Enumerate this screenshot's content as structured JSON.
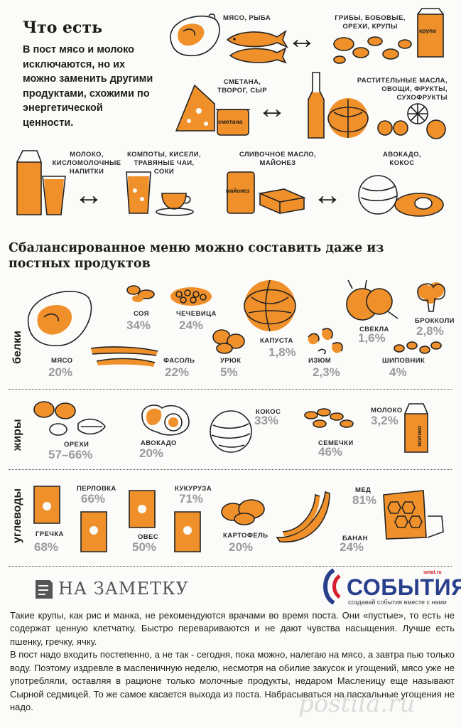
{
  "header": {
    "title": "Что есть",
    "intro": "В пост мясо и молоко исключаются, но их можно заменить другими продуктами, схожими по энергетической ценности."
  },
  "substitutions": {
    "meat_fish": "мясо, рыба",
    "mushrooms": "грибы, бобовые, орехи, крупы",
    "dairy_soft": "сметана, творог, сыр",
    "veg_oils": "растительные масла, овощи, фрукты, сухофрукты",
    "milk": "молоко, кисломолочные напитки",
    "compotes": "компоты, кисели, травяные чаи, соки",
    "butter": "сливочное масло, майонез",
    "avocado": "авокадо, кокос",
    "arrow": "↔",
    "pack_krupa": "крупа",
    "jar_smetana": "сметана",
    "jar_mayo": "майонез"
  },
  "balanced": {
    "title": "Сбалансированное меню можно составить даже из постных продуктов"
  },
  "sections": {
    "proteins": {
      "label": "белки",
      "items": [
        {
          "name": "мясо",
          "pct": "20%"
        },
        {
          "name": "соя",
          "pct": "34%"
        },
        {
          "name": "чечевица",
          "pct": "24%"
        },
        {
          "name": "фасоль",
          "pct": "22%"
        },
        {
          "name": "урюк",
          "pct": "5%"
        },
        {
          "name": "капуста",
          "pct": "1,8%"
        },
        {
          "name": "изюм",
          "pct": "2,3%"
        },
        {
          "name": "свекла",
          "pct": "1,6%"
        },
        {
          "name": "брокколи",
          "pct": "2,8%"
        },
        {
          "name": "шиповник",
          "pct": "4%"
        }
      ]
    },
    "fats": {
      "label": "жиры",
      "items": [
        {
          "name": "орехи",
          "pct": "57–66%"
        },
        {
          "name": "авокадо",
          "pct": "20%"
        },
        {
          "name": "кокос",
          "pct": "33%"
        },
        {
          "name": "семечки",
          "pct": "46%"
        },
        {
          "name": "молоко",
          "pct": "3,2%"
        }
      ],
      "milk_pack": "молоко"
    },
    "carbs": {
      "label": "углеводы",
      "items": [
        {
          "name": "гречка",
          "pct": "68%"
        },
        {
          "name": "перловка",
          "pct": "66%"
        },
        {
          "name": "овес",
          "pct": "50%"
        },
        {
          "name": "кукуруза",
          "pct": "71%"
        },
        {
          "name": "картофель",
          "pct": "20%"
        },
        {
          "name": "банан",
          "pct": "24%"
        },
        {
          "name": "мед",
          "pct": "81%"
        }
      ]
    }
  },
  "note": {
    "heading": "НА ЗАМЕТКУ",
    "p1": "Такие крупы, как рис и манка, не рекомендуются врачами во время поста. Они «пустые», то есть не содержат ценную клетчатку. Быстро перевариваются и не дают чувства насыщения. Лучше есть пшенку, гречку, ячку.",
    "p2": "В пост надо входить постепенно, а не так - сегодня, пока можно, налегаю на мясо, а завтра пью только воду. Поэтому издревле в масленичную неделю, несмотря на обилие закусок и угощений, мясо уже не употребляли, оставляя в рационе только молочные продукты, недаром Масленицу еще называют Сырной седмицей. То же самое касается выхода из поста. Набрасываться на пасхальные угощения не надо."
  },
  "logo": {
    "site": "sntat.ru",
    "name": "СОБЫТИЯ",
    "tagline": "создавай события вместе с нами"
  },
  "watermark": "postila.ru",
  "colors": {
    "accent": "#f0902a",
    "text": "#1d1d1b",
    "muted": "#9a9a9a",
    "brand_blue": "#2a3f8c",
    "brand_red": "#d4202c"
  }
}
